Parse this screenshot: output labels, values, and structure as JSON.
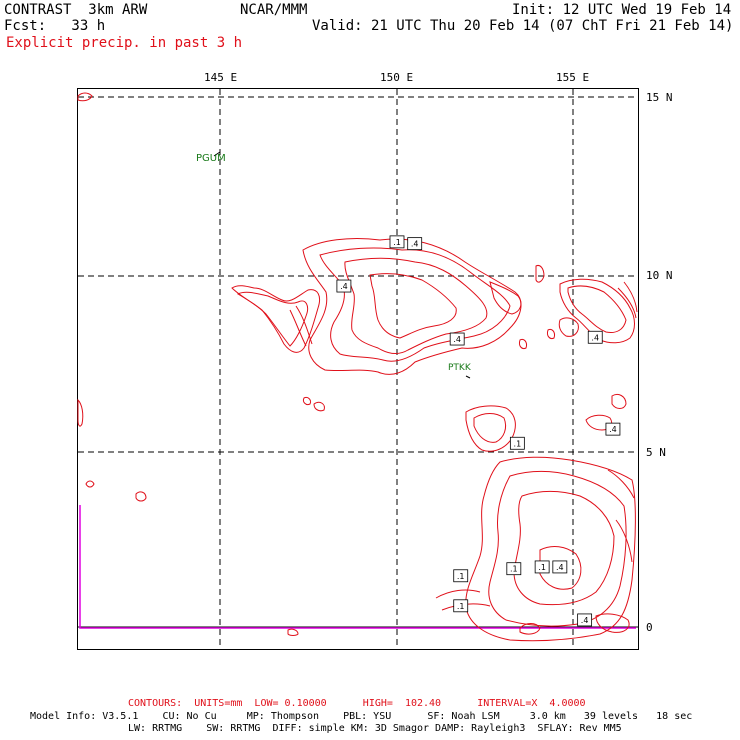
{
  "header": {
    "model": "CONTRAST  3km ARW",
    "org": "NCAR/MMM",
    "init": "Init: 12 UTC Wed 19 Feb 14",
    "fcst": "Fcst:   33 h",
    "valid": "Valid: 21 UTC Thu 20 Feb 14 (07 ChT Fri 21 Feb 14)",
    "field": "Explicit precip. in past 3 h"
  },
  "axes": {
    "lon_labels": [
      "145 E",
      "150 E",
      "155 E"
    ],
    "lat_labels": [
      "15 N",
      "10 N",
      "5 N",
      "0"
    ],
    "lon_range": [
      141,
      156.9
    ],
    "lat_range": [
      -0.6,
      15.2
    ],
    "grid": "dashed"
  },
  "stations": [
    {
      "id": "PGUM",
      "lon": 144.8,
      "lat": 13.5
    },
    {
      "id": "PTKK",
      "lon": 151.9,
      "lat": 7.45
    }
  ],
  "contour_labels": [
    {
      "text": ".1",
      "lon": 150.0,
      "lat": 10.9
    },
    {
      "text": ".4",
      "lon": 150.5,
      "lat": 10.85
    },
    {
      "text": ".4",
      "lon": 148.5,
      "lat": 9.65
    },
    {
      "text": ".4",
      "lon": 151.7,
      "lat": 8.15
    },
    {
      "text": ".4",
      "lon": 155.6,
      "lat": 8.2
    },
    {
      "text": ".4",
      "lon": 156.1,
      "lat": 5.6
    },
    {
      "text": ".1",
      "lon": 153.4,
      "lat": 5.2
    },
    {
      "text": ".1",
      "lon": 151.8,
      "lat": 1.45
    },
    {
      "text": ".1",
      "lon": 153.3,
      "lat": 1.65
    },
    {
      "text": ".1",
      "lon": 154.1,
      "lat": 1.7
    },
    {
      "text": ".4",
      "lon": 154.6,
      "lat": 1.7
    },
    {
      "text": ".1",
      "lon": 151.8,
      "lat": 0.6
    },
    {
      "text": ".4",
      "lon": 155.3,
      "lat": 0.2
    }
  ],
  "legend": {
    "contours": "CONTOURS:  UNITS=mm  LOW= 0.10000      HIGH=  102.40      INTERVAL=X  4.0000"
  },
  "model_info": {
    "line1": "Model Info: V3.5.1    CU: No Cu     MP: Thompson    PBL: YSU      SF: Noah LSM     3.0 km   39 levels   18 sec",
    "line2": "LW: RRTMG    SW: RRTMG  DIFF: simple KM: 3D Smagor DAMP: Rayleigh3  SFLAY: Rev MM5"
  },
  "colors": {
    "contour": "#e0101a",
    "station": "#1a7a1a",
    "boundary": "#e000e0",
    "grid": "#000000"
  }
}
